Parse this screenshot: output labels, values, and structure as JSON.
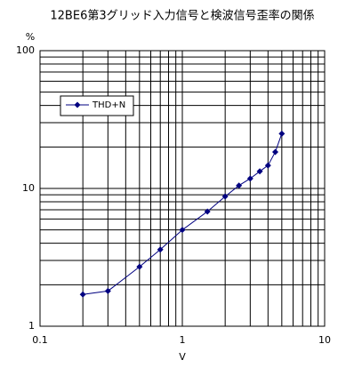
{
  "chart_data": {
    "type": "line",
    "title": "12BE6第3グリッド入力信号と検波信号歪率の関係",
    "x_label": "V",
    "y_label": "%",
    "x": [
      0.2,
      0.3,
      0.5,
      0.7,
      1.0,
      1.5,
      2,
      2.5,
      3,
      3.5,
      4,
      4.5,
      5
    ],
    "series": [
      {
        "name": "THD+N",
        "color": "#000080",
        "values": [
          1.7,
          1.8,
          2.7,
          3.6,
          5,
          6.8,
          8.75,
          10.5,
          11.8,
          13.3,
          14.7,
          18.4,
          25
        ]
      }
    ],
    "xlim": [
      0.1,
      10
    ],
    "ylim": [
      1,
      100
    ],
    "xticks": [
      0.1,
      1,
      10
    ],
    "yticks": [
      1,
      10,
      100
    ],
    "log_x": true,
    "log_y": true,
    "grid": true,
    "minor_grid": true,
    "legend": "upper-left"
  }
}
